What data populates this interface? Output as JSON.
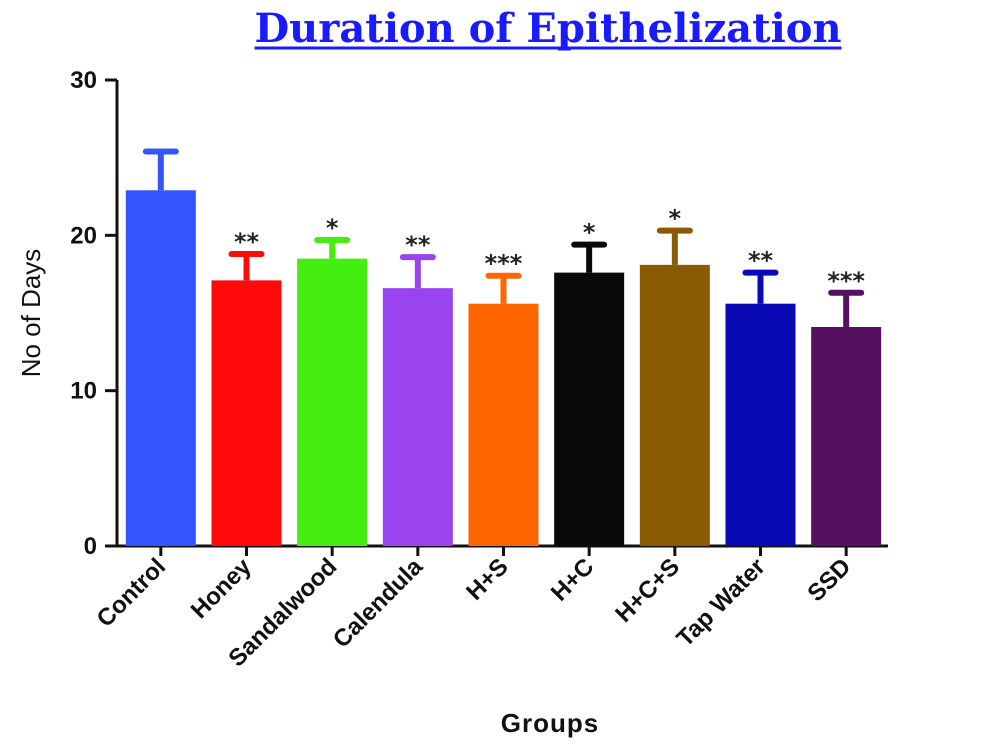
{
  "chart_data": {
    "type": "bar",
    "title": "Duration of Epithelization",
    "xlabel": "Groups",
    "ylabel": "No of Days",
    "ylim": [
      0,
      30
    ],
    "yticks": [
      0,
      10,
      20,
      30
    ],
    "grid": false,
    "legend": null,
    "categories": [
      "Control",
      "Honey",
      "Sandalwood",
      "Calendula",
      "H+S",
      "H+C",
      "H+C+S",
      "Tap Water",
      "SSD"
    ],
    "values": [
      22.9,
      17.1,
      18.5,
      16.6,
      15.6,
      17.6,
      18.1,
      15.6,
      14.1
    ],
    "error_upper": [
      2.5,
      1.7,
      1.2,
      2.0,
      1.8,
      1.8,
      2.2,
      2.0,
      2.2
    ],
    "significance": [
      "",
      "**",
      "*",
      "**",
      "***",
      "*",
      "*",
      "**",
      "***"
    ],
    "colors": [
      "#3355ff",
      "#ff0a0a",
      "#44ee11",
      "#9944ee",
      "#ff6600",
      "#0a0a0a",
      "#8a5a00",
      "#0a0ab4",
      "#55105f"
    ],
    "title_color": "#1a1aff"
  }
}
